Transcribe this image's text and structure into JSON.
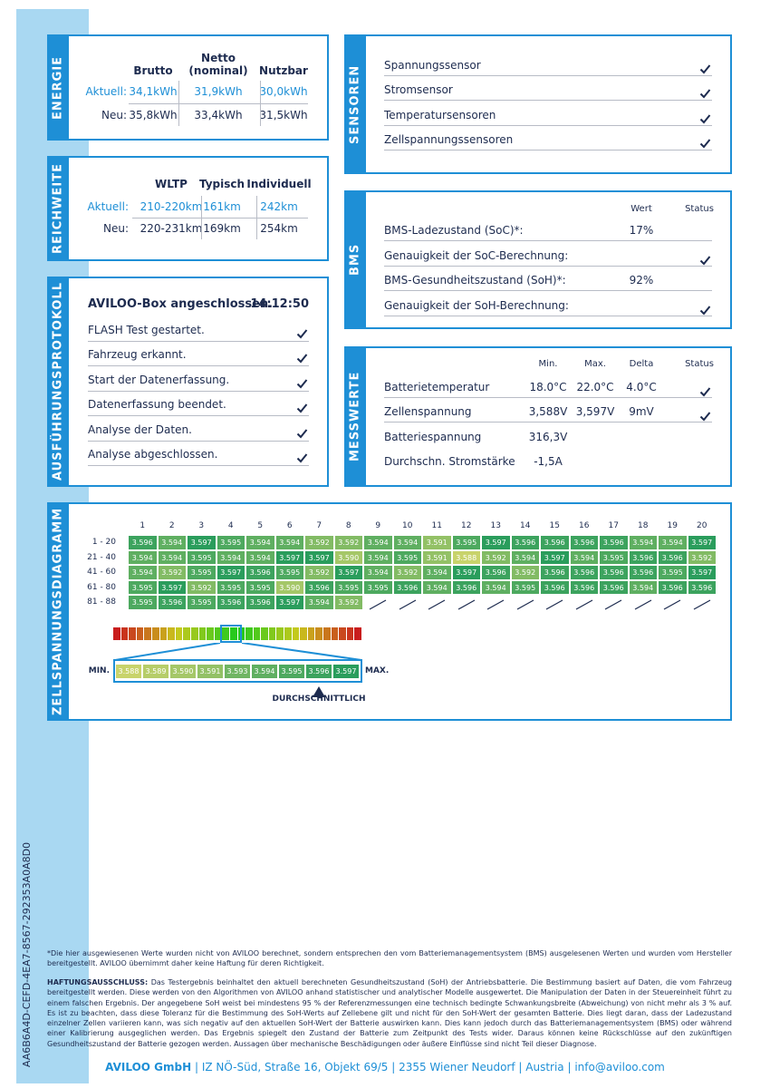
{
  "document_id": "AA6B6A4D-CEFD-4EA7-8567-292353A0A8D0",
  "energie": {
    "title": "ENERGIE",
    "columns": [
      "Brutto",
      "Netto\n(nominal)",
      "Nutzbar"
    ],
    "rows": [
      {
        "label": "Aktuell:",
        "cells": [
          "34,1kWh",
          "31,9kWh",
          "30,0kWh"
        ]
      },
      {
        "label": "Neu:",
        "cells": [
          "35,8kWh",
          "33,4kWh",
          "31,5kWh"
        ]
      }
    ]
  },
  "reichweite": {
    "title": "REICHWEITE",
    "columns": [
      "WLTP",
      "Typisch",
      "Individuell"
    ],
    "rows": [
      {
        "label": "Aktuell:",
        "cells": [
          "210-220km",
          "161km",
          "242km"
        ]
      },
      {
        "label": "Neu:",
        "cells": [
          "220-231km",
          "169km",
          "254km"
        ]
      }
    ]
  },
  "protokoll": {
    "title": "AUSFÜHRUNGSPROTOKOLL",
    "header": {
      "text": "AVILOO-Box angeschlossen.",
      "time": "14:12:50"
    },
    "steps": [
      "FLASH Test gestartet.",
      "Fahrzeug erkannt.",
      "Start der Datenerfassung.",
      "Datenerfassung beendet.",
      "Analyse der Daten.",
      "Analyse abgeschlossen."
    ]
  },
  "sensoren": {
    "title": "SENSOREN",
    "items": [
      "Spannungssensor",
      "Stromsensor",
      "Temperatursensoren",
      "Zellspannungssensoren"
    ]
  },
  "bms": {
    "title": "BMS",
    "columns": [
      "Wert",
      "Status"
    ],
    "rows": [
      {
        "label": "BMS-Ladezustand (SoC)*:",
        "value": "17%"
      },
      {
        "label": "Genauigkeit der SoC-Berechnung:",
        "check": true
      },
      {
        "label": "BMS-Gesundheitszustand (SoH)*:",
        "value": "92%"
      },
      {
        "label": "Genauigkeit der SoH-Berechnung:",
        "check": true
      }
    ]
  },
  "messwerte": {
    "title": "MESSWERTE",
    "columns": [
      "Min.",
      "Max.",
      "Delta",
      "Status"
    ],
    "rows": [
      {
        "label": "Batterietemperatur",
        "cells": [
          "18.0°C",
          "22.0°C",
          "4.0°C"
        ],
        "check": true
      },
      {
        "label": "Zellenspannung",
        "cells": [
          "3,588V",
          "3,597V",
          "9mV"
        ],
        "check": true
      },
      {
        "label": "Batteriespannung",
        "cells": [
          "316,3V"
        ]
      },
      {
        "label": "Durchschn. Stromstärke",
        "cells": [
          "-1,5A"
        ]
      }
    ]
  },
  "zellspannung": {
    "title": "ZELLSPANNUNGSDIAGRAMM",
    "column_numbers": [
      1,
      2,
      3,
      4,
      5,
      6,
      7,
      8,
      9,
      10,
      11,
      12,
      13,
      14,
      15,
      16,
      17,
      18,
      19,
      20
    ],
    "rows": [
      {
        "label": "1 - 20",
        "values": [
          "3.596",
          "3.594",
          "3.597",
          "3.595",
          "3.594",
          "3.594",
          "3.592",
          "3.592",
          "3.594",
          "3.594",
          "3.591",
          "3.595",
          "3.597",
          "3.596",
          "3.596",
          "3.596",
          "3.596",
          "3.594",
          "3.594",
          "3.597"
        ]
      },
      {
        "label": "21 - 40",
        "values": [
          "3.594",
          "3.594",
          "3.595",
          "3.594",
          "3.594",
          "3.597",
          "3.597",
          "3.590",
          "3.594",
          "3.595",
          "3.591",
          "3.588",
          "3.592",
          "3.594",
          "3.597",
          "3.594",
          "3.595",
          "3.596",
          "3.596",
          "3.592"
        ]
      },
      {
        "label": "41 - 60",
        "values": [
          "3.594",
          "3.592",
          "3.595",
          "3.597",
          "3.596",
          "3.595",
          "3.592",
          "3.597",
          "3.594",
          "3.592",
          "3.594",
          "3.597",
          "3.596",
          "3.592",
          "3.596",
          "3.596",
          "3.596",
          "3.596",
          "3.595",
          "3.597"
        ]
      },
      {
        "label": "61 - 80",
        "values": [
          "3.595",
          "3.597",
          "3.592",
          "3.595",
          "3.595",
          "3.590",
          "3.596",
          "3.595",
          "3.595",
          "3.596",
          "3.594",
          "3.596",
          "3.594",
          "3.595",
          "3.596",
          "3.596",
          "3.596",
          "3.594",
          "3.596",
          "3.596"
        ]
      },
      {
        "label": "81 - 88",
        "values": [
          "3.595",
          "3.596",
          "3.595",
          "3.596",
          "3.596",
          "3.597",
          "3.594",
          "3.592"
        ]
      }
    ],
    "scale": {
      "min_label": "MIN.",
      "max_label": "MAX.",
      "values": [
        "3.588",
        "3.589",
        "3.590",
        "3.591",
        "3.593",
        "3.594",
        "3.595",
        "3.596",
        "3.597"
      ],
      "average_label": "DURCHSCHNITTLICH"
    }
  },
  "footnote": "*Die hier ausgewiesenen Werte wurden nicht von AVILOO berechnet, sondern entsprechen den vom Batteriemanagementsystem (BMS) ausgelesenen Werten und wurden vom Hersteller bereitgestellt. AVILOO übernimmt daher keine Haftung für deren Richtigkeit.",
  "disclaimer": {
    "heading": "HAFTUNGSAUSSCHLUSS:",
    "text": "Das Testergebnis beinhaltet den aktuell berechneten Gesundheitszustand (SoH) der Antriebsbatterie. Die Bestimmung basiert auf Daten, die vom Fahrzeug bereitgestellt werden. Diese werden von den Algorithmen von AVILOO anhand statistischer und analytischer Modelle ausgewertet. Die Manipulation der Daten in der Steuereinheit führt zu einem falschen Ergebnis. Der angegebene SoH weist bei mindestens 95 % der Referenzmessungen eine technisch bedingte Schwankungsbreite (Abweichung) von nicht mehr als 3 % auf. Es ist zu beachten, dass diese Toleranz für die Bestimmung des SoH-Werts auf Zellebene gilt und nicht für den SoH-Wert der gesamten Batterie. Dies liegt daran, dass der Ladezustand einzelner Zellen variieren kann, was sich negativ auf den aktuellen SoH-Wert der Batterie auswirken kann. Dies kann jedoch durch das Batteriemanagementsystem (BMS) oder während einer Kalibrierung ausgeglichen werden. Das Ergebnis spiegelt den Zustand der Batterie zum Zeitpunkt des Tests wider. Daraus können keine Rückschlüsse auf den zukünftigen Gesundheitszustand der Batterie gezogen werden. Aussagen über mechanische Beschädigungen oder äußere Einflüsse sind nicht Teil dieser Diagnose."
  },
  "footer": [
    "AVILOO GmbH",
    "IZ NÖ-Süd, Straße 16, Objekt 69/5",
    "2355 Wiener Neudorf",
    "Austria",
    "info@aviloo.com"
  ]
}
